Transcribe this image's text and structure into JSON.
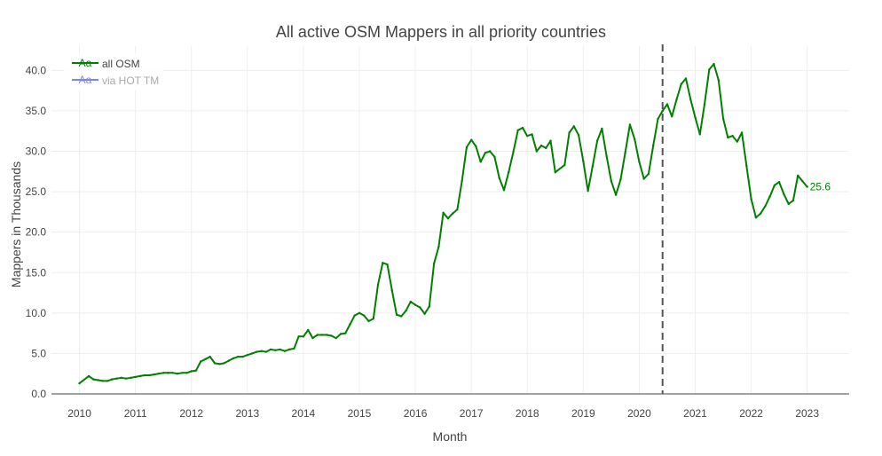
{
  "chart_data": {
    "type": "line",
    "title": "All active OSM Mappers in all priority countries",
    "xlabel": "Month",
    "ylabel": "Mappers in Thousands",
    "ylim": [
      0,
      43
    ],
    "xlim": [
      "2009-07",
      "2023-10"
    ],
    "y_ticks": [
      "0.0",
      "5.0",
      "10.0",
      "15.0",
      "20.0",
      "25.0",
      "30.0",
      "35.0",
      "40.0"
    ],
    "x_ticks": [
      "2010",
      "2011",
      "2012",
      "2013",
      "2014",
      "2015",
      "2016",
      "2017",
      "2018",
      "2019",
      "2020",
      "2021",
      "2022",
      "2023"
    ],
    "grid": true,
    "legend_position": "top-left",
    "vertical_marker": {
      "x": "2020-06",
      "style": "dashed",
      "color": "#555555"
    },
    "end_label": {
      "text": "25.6",
      "x": "2023-01",
      "y": 25.6
    },
    "series": [
      {
        "name": "all OSM",
        "color": "#008000",
        "visible": true,
        "x": [
          "2010-01",
          "2010-03",
          "2010-04",
          "2010-05",
          "2010-06",
          "2010-07",
          "2010-08",
          "2010-09",
          "2010-10",
          "2010-11",
          "2010-12",
          "2011-01",
          "2011-02",
          "2011-03",
          "2011-04",
          "2011-05",
          "2011-06",
          "2011-07",
          "2011-08",
          "2011-09",
          "2011-10",
          "2011-11",
          "2011-12",
          "2012-01",
          "2012-02",
          "2012-03",
          "2012-04",
          "2012-05",
          "2012-06",
          "2012-07",
          "2012-08",
          "2012-09",
          "2012-10",
          "2012-11",
          "2012-12",
          "2013-01",
          "2013-02",
          "2013-03",
          "2013-04",
          "2013-05",
          "2013-06",
          "2013-07",
          "2013-08",
          "2013-09",
          "2013-10",
          "2013-11",
          "2013-12",
          "2014-01",
          "2014-02",
          "2014-03",
          "2014-04",
          "2014-05",
          "2014-06",
          "2014-07",
          "2014-08",
          "2014-09",
          "2014-10",
          "2014-11",
          "2014-12",
          "2015-01",
          "2015-02",
          "2015-03",
          "2015-04",
          "2015-05",
          "2015-06",
          "2015-07",
          "2015-08",
          "2015-09",
          "2015-10",
          "2015-11",
          "2015-12",
          "2016-01",
          "2016-02",
          "2016-03",
          "2016-04",
          "2016-05",
          "2016-06",
          "2016-07",
          "2016-08",
          "2016-09",
          "2016-10",
          "2016-11",
          "2016-12",
          "2017-01",
          "2017-02",
          "2017-03",
          "2017-04",
          "2017-05",
          "2017-06",
          "2017-07",
          "2017-08",
          "2017-09",
          "2017-10",
          "2017-11",
          "2017-12",
          "2018-01",
          "2018-02",
          "2018-03",
          "2018-04",
          "2018-05",
          "2018-06",
          "2018-07",
          "2018-09",
          "2018-10",
          "2018-11",
          "2018-12",
          "2019-01",
          "2019-02",
          "2019-03",
          "2019-04",
          "2019-05",
          "2019-06",
          "2019-07",
          "2019-08",
          "2019-09",
          "2019-10",
          "2019-11",
          "2019-12",
          "2020-01",
          "2020-02",
          "2020-03",
          "2020-04",
          "2020-05",
          "2020-06",
          "2020-07",
          "2020-08",
          "2020-09",
          "2020-10",
          "2020-11",
          "2020-12",
          "2021-01",
          "2021-02",
          "2021-03",
          "2021-04",
          "2021-05",
          "2021-06",
          "2021-07",
          "2021-08",
          "2021-09",
          "2021-10",
          "2021-11",
          "2021-12",
          "2022-01",
          "2022-02",
          "2022-03",
          "2022-04",
          "2022-05",
          "2022-06",
          "2022-07",
          "2022-08",
          "2022-09",
          "2022-10",
          "2022-11",
          "2022-12",
          "2023-01"
        ],
        "values": [
          1.3,
          2.2,
          1.8,
          1.7,
          1.6,
          1.6,
          1.8,
          1.9,
          2.0,
          1.9,
          2.0,
          2.1,
          2.2,
          2.3,
          2.3,
          2.4,
          2.5,
          2.6,
          2.6,
          2.6,
          2.5,
          2.6,
          2.6,
          2.8,
          2.9,
          4.0,
          4.3,
          4.6,
          3.8,
          3.7,
          3.8,
          4.1,
          4.4,
          4.6,
          4.6,
          4.8,
          5.0,
          5.2,
          5.3,
          5.2,
          5.5,
          5.4,
          5.5,
          5.3,
          5.5,
          5.6,
          7.1,
          7.1,
          7.9,
          6.9,
          7.3,
          7.3,
          7.3,
          7.2,
          6.9,
          7.4,
          7.5,
          8.6,
          9.7,
          10.0,
          9.7,
          9.0,
          9.3,
          13.5,
          16.2,
          16.0,
          12.8,
          9.8,
          9.6,
          10.3,
          11.4,
          11.0,
          10.7,
          9.9,
          10.8,
          16.1,
          18.2,
          22.4,
          21.7,
          22.3,
          22.8,
          26.3,
          30.5,
          31.4,
          30.6,
          28.7,
          29.8,
          30.0,
          29.3,
          26.7,
          25.2,
          27.4,
          29.9,
          32.6,
          32.9,
          31.9,
          32.1,
          30.0,
          30.7,
          30.4,
          31.3,
          27.4,
          28.3,
          32.3,
          33.1,
          32.0,
          28.8,
          25.1,
          28.1,
          31.3,
          32.8,
          29.4,
          26.3,
          24.6,
          26.5,
          29.8,
          33.3,
          31.5,
          28.7,
          26.6,
          27.2,
          30.7,
          34.0,
          35.0,
          35.8,
          34.3,
          36.4,
          38.3,
          39.0,
          36.4,
          34.2,
          32.1,
          35.8,
          40.1,
          40.8,
          38.8,
          34.0,
          31.7,
          31.9,
          31.2,
          32.3,
          28.2,
          24.1,
          21.8,
          22.3,
          23.2,
          24.4,
          25.8,
          26.2,
          24.7,
          23.5,
          23.9,
          27.0,
          26.3,
          25.6
        ]
      },
      {
        "name": "via HOT TM",
        "color": "#8080ff",
        "visible": false,
        "x": [],
        "values": []
      }
    ]
  }
}
